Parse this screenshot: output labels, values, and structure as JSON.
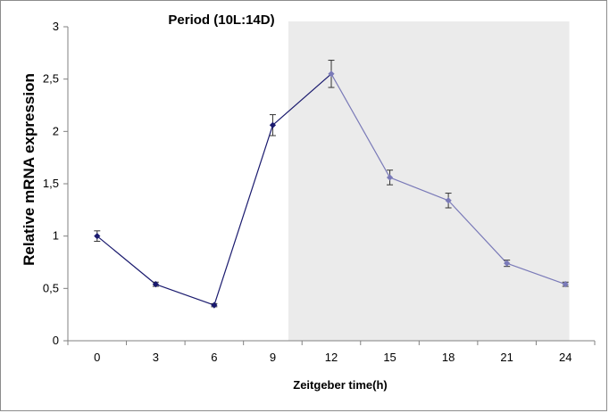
{
  "chart_data": {
    "type": "line",
    "title": "Period (10L:14D)",
    "xlabel": "Zeitgeber time(h)",
    "ylabel": "Relative mRNA expression",
    "x_ticks": [
      "0",
      "3",
      "6",
      "9",
      "12",
      "15",
      "18",
      "21",
      "24"
    ],
    "y_ticks": [
      "0",
      "0,5",
      "1",
      "1,5",
      "2",
      "2,5",
      "3"
    ],
    "xlim": [
      -1.5,
      25.5
    ],
    "ylim": [
      0,
      3
    ],
    "grid": false,
    "legend": "none",
    "dark_phase": {
      "start": 9.8,
      "end": 24.2,
      "color": "#ebebeb"
    },
    "series": [
      {
        "points": [
          {
            "x": 0,
            "y": 1.0,
            "err": 0.05,
            "color": "#1a1a6e"
          },
          {
            "x": 3,
            "y": 0.54,
            "err": 0.02,
            "color": "#1a1a6e"
          },
          {
            "x": 6,
            "y": 0.34,
            "err": 0.015,
            "color": "#1a1a6e"
          },
          {
            "x": 9,
            "y": 2.06,
            "err": 0.1,
            "color": "#1a1a6e"
          },
          {
            "x": 12,
            "y": 2.55,
            "err": 0.13,
            "color": "#7a7ab8"
          },
          {
            "x": 15,
            "y": 1.56,
            "err": 0.07,
            "color": "#7a7ab8"
          },
          {
            "x": 18,
            "y": 1.34,
            "err": 0.07,
            "color": "#7a7ab8"
          },
          {
            "x": 21,
            "y": 0.74,
            "err": 0.03,
            "color": "#7a7ab8"
          },
          {
            "x": 24,
            "y": 0.54,
            "err": 0.02,
            "color": "#7a7ab8"
          }
        ],
        "line_color_light": "#1a1a6e",
        "line_color_dark": "#7a7ab8"
      }
    ]
  }
}
